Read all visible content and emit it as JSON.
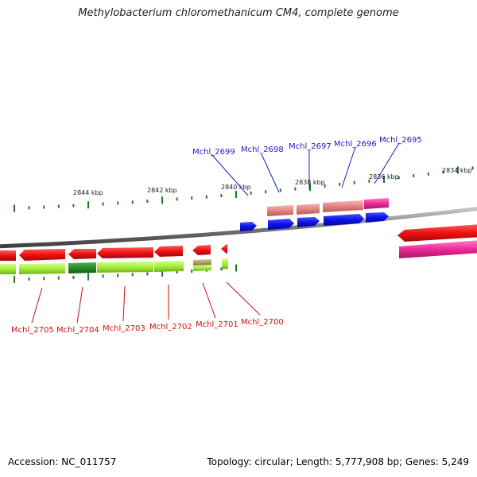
{
  "title": "Methylobacterium chloromethanicum CM4, complete genome",
  "footer": {
    "accession": "Accession: NC_011757",
    "topology": "Topology: circular; Length: 5,777,908 bp; Genes: 5,249"
  },
  "kbp_ticks": [
    "2844 kbp",
    "2842 kbp",
    "2840 kbp",
    "2838 kbp",
    "2836 kbp",
    "2834 kbp"
  ],
  "genes_top": [
    "Mchl_2699",
    "Mchl_2698",
    "Mchl_2697",
    "Mchl_2696",
    "Mchl_2695"
  ],
  "genes_bottom": [
    "Mchl_2705",
    "Mchl_2704",
    "Mchl_2703",
    "Mchl_2702",
    "Mchl_2701",
    "Mchl_2700"
  ],
  "colors": {
    "top_label": "#1a1acc",
    "bottom_label": "#cc1111",
    "tick": "#1f7a1f",
    "backbone": "#888888",
    "blue_gene": "#0b12e6",
    "red_gene": "#ee1111",
    "pink_gene": "#e58383",
    "magenta_gene": "#ee2a99",
    "lime_gene": "#a5ee3a",
    "darkgreen_gene": "#2a8a2a",
    "tan_gene": "#b5a070"
  }
}
